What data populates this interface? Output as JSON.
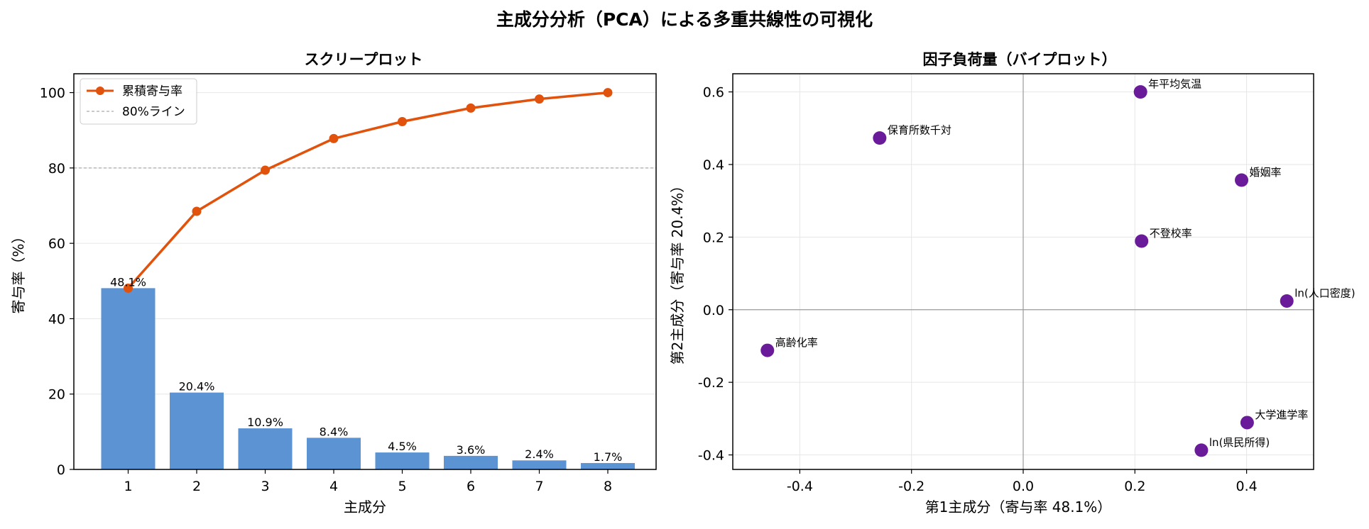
{
  "title": "主成分分析（PCA）による多重共線性の可視化",
  "chart_data": [
    {
      "type": "bar",
      "title": "スクリープロット",
      "xlabel": "主成分",
      "ylabel": "寄与率（%）",
      "categories": [
        "1",
        "2",
        "3",
        "4",
        "5",
        "6",
        "7",
        "8"
      ],
      "xticks": [
        "1",
        "2",
        "3",
        "4",
        "5",
        "6",
        "7",
        "8"
      ],
      "values": [
        48.1,
        20.4,
        10.9,
        8.4,
        4.5,
        3.6,
        2.4,
        1.7
      ],
      "value_labels": [
        "48.1%",
        "20.4%",
        "10.9%",
        "8.4%",
        "4.5%",
        "3.6%",
        "2.4%",
        "1.7%"
      ],
      "bar_color": "#5b93d3",
      "ylim": [
        0,
        105
      ],
      "yticks": [
        0,
        20,
        40,
        60,
        80,
        100
      ],
      "ytick_labels": [
        "0",
        "20",
        "40",
        "60",
        "80",
        "100"
      ],
      "grid": true,
      "series": [
        {
          "name": "累積寄与率",
          "type": "line",
          "values": [
            48.1,
            68.5,
            79.4,
            87.8,
            92.3,
            95.9,
            98.3,
            100.0
          ],
          "color": "#e1520c"
        }
      ],
      "reference_line": {
        "name": "80%ライン",
        "y": 80,
        "color": "#aaaaaa",
        "style": "dashed"
      },
      "legend": {
        "position": "upper-left",
        "entries": [
          "累積寄与率",
          "80%ライン"
        ]
      }
    },
    {
      "type": "scatter",
      "title": "因子負荷量（バイプロット）",
      "xlabel": "第1主成分（寄与率 48.1%）",
      "ylabel": "第2主成分（寄与率 20.4%）",
      "xlim": [
        -0.52,
        0.52
      ],
      "ylim": [
        -0.44,
        0.65
      ],
      "xticks": [
        -0.4,
        -0.2,
        0.0,
        0.2,
        0.4
      ],
      "xtick_labels": [
        "-0.4",
        "-0.2",
        "0.0",
        "0.2",
        "0.4"
      ],
      "yticks": [
        -0.4,
        -0.2,
        0.0,
        0.2,
        0.4,
        0.6
      ],
      "ytick_labels": [
        "-0.4",
        "-0.2",
        "0.0",
        "0.2",
        "0.4",
        "0.6"
      ],
      "grid": true,
      "point_color": "#6a1b9a",
      "points": [
        {
          "label": "年平均気温",
          "x": 0.21,
          "y": 0.6
        },
        {
          "label": "保育所数千対",
          "x": -0.257,
          "y": 0.473
        },
        {
          "label": "婚姻率",
          "x": 0.391,
          "y": 0.357
        },
        {
          "label": "不登校率",
          "x": 0.212,
          "y": 0.189
        },
        {
          "label": "ln(人口密度)",
          "x": 0.472,
          "y": 0.024
        },
        {
          "label": "高齢化率",
          "x": -0.458,
          "y": -0.112
        },
        {
          "label": "大学進学率",
          "x": 0.401,
          "y": -0.311
        },
        {
          "label": "ln(県民所得)",
          "x": 0.319,
          "y": -0.387
        }
      ]
    }
  ]
}
